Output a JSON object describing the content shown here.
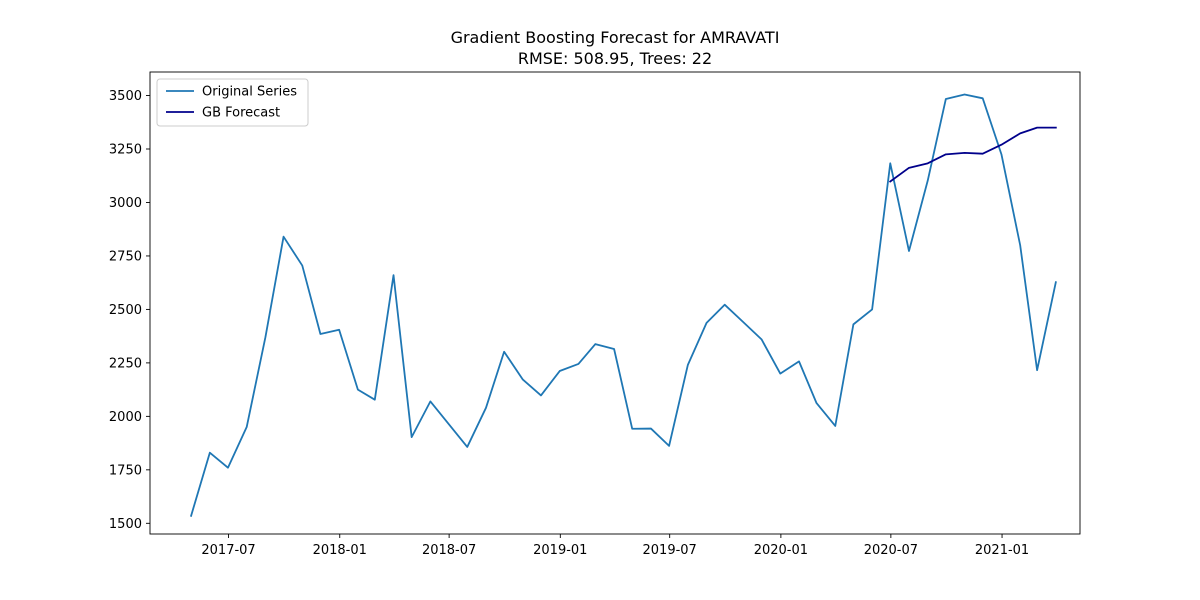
{
  "chart_data": {
    "type": "line",
    "title": "Gradient Boosting Forecast for AMRAVATI",
    "subtitle": "RMSE: 508.95, Trees: 22",
    "xlabel": "",
    "ylabel": "",
    "xlim": [
      "2017-02-21",
      "2021-05-10"
    ],
    "ylim": [
      1450,
      3610
    ],
    "x_ticks": [
      "2017-07",
      "2018-01",
      "2018-07",
      "2019-01",
      "2019-07",
      "2020-01",
      "2020-07",
      "2021-01"
    ],
    "y_ticks": [
      1500,
      1750,
      2000,
      2250,
      2500,
      2750,
      3000,
      3250,
      3500
    ],
    "legend": {
      "position": "top-left"
    },
    "grid": false,
    "series": [
      {
        "name": "Original Series",
        "color": "#1f77b4",
        "x": [
          "2017-04-30",
          "2017-05-31",
          "2017-06-30",
          "2017-07-31",
          "2017-08-31",
          "2017-09-30",
          "2017-10-31",
          "2017-11-30",
          "2017-12-31",
          "2018-01-31",
          "2018-02-28",
          "2018-03-31",
          "2018-04-30",
          "2018-05-31",
          "2018-06-30",
          "2018-07-31",
          "2018-08-31",
          "2018-09-30",
          "2018-10-31",
          "2018-11-30",
          "2018-12-31",
          "2019-01-31",
          "2019-02-28",
          "2019-03-31",
          "2019-04-30",
          "2019-05-31",
          "2019-06-30",
          "2019-07-31",
          "2019-08-31",
          "2019-09-30",
          "2019-10-31",
          "2019-11-30",
          "2019-12-31",
          "2020-01-31",
          "2020-02-29",
          "2020-03-31",
          "2020-04-30",
          "2020-05-31",
          "2020-06-30",
          "2020-07-31",
          "2020-08-31",
          "2020-09-30",
          "2020-10-31",
          "2020-11-30",
          "2020-12-31",
          "2021-01-31",
          "2021-02-28",
          "2021-03-31"
        ],
        "y": [
          1535,
          1830,
          1760,
          1950,
          2370,
          2840,
          2705,
          2385,
          2405,
          2125,
          2078,
          2660,
          1903,
          2070,
          1965,
          1857,
          2040,
          2302,
          2172,
          2098,
          2212,
          2245,
          2338,
          2315,
          1942,
          1943,
          1862,
          2240,
          2437,
          2522,
          2440,
          2360,
          2200,
          2257,
          2062,
          1955,
          2430,
          2500,
          3183,
          2773,
          3102,
          3484,
          3505,
          3487,
          3225,
          2800,
          2216,
          2627
        ]
      },
      {
        "name": "GB Forecast",
        "color": "#00008b",
        "x": [
          "2020-06-30",
          "2020-07-31",
          "2020-08-31",
          "2020-09-30",
          "2020-10-31",
          "2020-11-30",
          "2020-12-31",
          "2021-01-31",
          "2021-02-28",
          "2021-03-31"
        ],
        "y": [
          3098,
          3162,
          3183,
          3225,
          3232,
          3228,
          3270,
          3323,
          3350,
          3350
        ]
      }
    ]
  }
}
